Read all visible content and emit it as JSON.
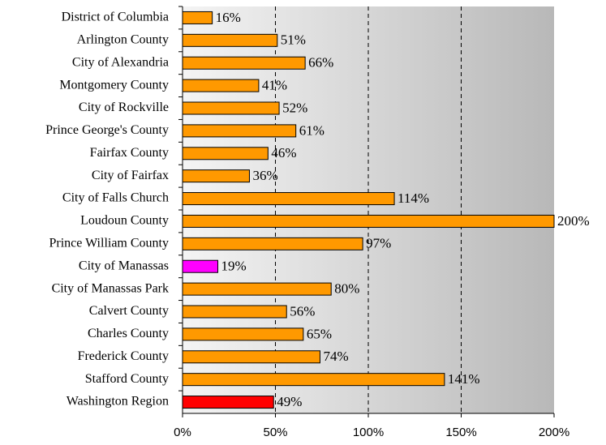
{
  "chart_data": {
    "type": "bar",
    "orientation": "horizontal",
    "categories": [
      "District of Columbia",
      "Arlington County",
      "City of Alexandria",
      "Montgomery County",
      "City of Rockville",
      "Prince George's County",
      "Fairfax County",
      "City of Fairfax",
      "City of Falls Church",
      "Loudoun County",
      "Prince William County",
      "City of Manassas",
      "City of Manassas Park",
      "Calvert County",
      "Charles County",
      "Frederick County",
      "Stafford County",
      "Washington Region"
    ],
    "values": [
      16,
      51,
      66,
      41,
      52,
      61,
      46,
      36,
      114,
      200,
      97,
      19,
      80,
      56,
      65,
      74,
      141,
      49
    ],
    "value_labels": [
      "16%",
      "51%",
      "66%",
      "41%",
      "52%",
      "61%",
      "46%",
      "36%",
      "114%",
      "200%",
      "97%",
      "19%",
      "80%",
      "56%",
      "65%",
      "74%",
      "141%",
      "49%"
    ],
    "colors": [
      "#ff9900",
      "#ff9900",
      "#ff9900",
      "#ff9900",
      "#ff9900",
      "#ff9900",
      "#ff9900",
      "#ff9900",
      "#ff9900",
      "#ff9900",
      "#ff9900",
      "#ff00ff",
      "#ff9900",
      "#ff9900",
      "#ff9900",
      "#ff9900",
      "#ff9900",
      "#ff0000"
    ],
    "xlim": [
      0,
      200
    ],
    "xticks": [
      {
        "value": 0,
        "label": "0%"
      },
      {
        "value": 50,
        "label": "50%"
      },
      {
        "value": 100,
        "label": "100%"
      },
      {
        "value": 150,
        "label": "150%"
      },
      {
        "value": 200,
        "label": "200%"
      }
    ],
    "grid": true
  }
}
